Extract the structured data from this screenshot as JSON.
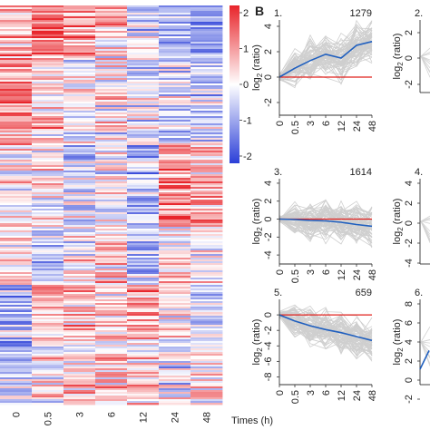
{
  "heatmap": {
    "times": [
      "0",
      "0.5",
      "3",
      "6",
      "12",
      "24",
      "48"
    ],
    "xlabel": "Times (h)",
    "colorbar_ticks": [
      "2",
      "1",
      "0",
      "-1",
      "-2"
    ],
    "colorbar_label_base": "log",
    "colorbar_label_sub": "2",
    "colorbar_label_rest": "(ratio)",
    "colors": {
      "high": "#e8242a",
      "mid": "#ffffff",
      "low": "#2b3fd8"
    }
  },
  "panel_b": {
    "letter": "B"
  },
  "chart_data": [
    {
      "type": "heatmap",
      "title": "",
      "x": [
        "0",
        "0.5",
        "3",
        "6",
        "12",
        "24",
        "48"
      ],
      "xlabel": "Times (h)",
      "colorbar_range": [
        -2,
        2
      ],
      "colorbar_label": "log2 (ratio)"
    },
    {
      "type": "line",
      "panel": "1.",
      "count": "1279",
      "x": [
        "0",
        "0.5",
        "3",
        "6",
        "12",
        "24",
        "48"
      ],
      "xticks": [
        "0",
        "0.5",
        "3",
        "6",
        "12",
        "24",
        "48"
      ],
      "yticks": [
        "4",
        "2",
        "0",
        "-2"
      ],
      "ylim": [
        -3,
        4.5
      ],
      "ylabel": "log2 (ratio)",
      "series": [
        {
          "values": [
            0,
            0.7,
            1.3,
            1.8,
            1.5,
            2.5,
            2.8
          ],
          "color": "#1f5fbf"
        }
      ],
      "reference_line": {
        "value": 0,
        "color": "#e0201c"
      }
    },
    {
      "type": "line",
      "panel": "3.",
      "count": "1614",
      "x": [
        "0",
        "0.5",
        "3",
        "6",
        "12",
        "24",
        "48"
      ],
      "xticks": [
        "0",
        "0.5",
        "3",
        "6",
        "12",
        "24",
        "48"
      ],
      "yticks": [
        "4",
        "2",
        "0",
        "-2",
        "-4"
      ],
      "ylim": [
        -5,
        4.5
      ],
      "ylabel": "log2 (ratio)",
      "series": [
        {
          "values": [
            0,
            -0.05,
            -0.15,
            -0.2,
            -0.35,
            -0.6,
            -0.8
          ],
          "color": "#1f5fbf"
        }
      ],
      "reference_line": {
        "value": 0,
        "color": "#e0201c"
      }
    },
    {
      "type": "line",
      "panel": "5.",
      "count": "659",
      "x": [
        "0",
        "0.5",
        "3",
        "6",
        "12",
        "24",
        "48"
      ],
      "xticks": [
        "0",
        "0.5",
        "3",
        "6",
        "12",
        "24",
        "48"
      ],
      "yticks": [
        "0",
        "-2",
        "-4",
        "-6",
        "-8"
      ],
      "ylim": [
        -9,
        2
      ],
      "ylabel": "log2 (ratio)",
      "series": [
        {
          "values": [
            0,
            -0.8,
            -1.4,
            -1.9,
            -2.3,
            -2.8,
            -3.3
          ],
          "color": "#1f5fbf"
        }
      ],
      "reference_line": {
        "value": 0,
        "color": "#e0201c"
      }
    },
    {
      "type": "line",
      "panel": "2.",
      "yticks": [
        "2",
        "0",
        "-2"
      ],
      "ylabel": "log2 (ratio)",
      "truncated": true
    },
    {
      "type": "line",
      "panel": "4.",
      "yticks": [
        "4",
        "2",
        "0",
        "-2",
        "-4"
      ],
      "ylabel": "log2 (ratio)",
      "truncated": true
    },
    {
      "type": "line",
      "panel": "6.",
      "yticks": [
        "8",
        "6",
        "4",
        "2",
        "0",
        "-2"
      ],
      "ylabel": "log2 (ratio)",
      "truncated": true
    }
  ]
}
